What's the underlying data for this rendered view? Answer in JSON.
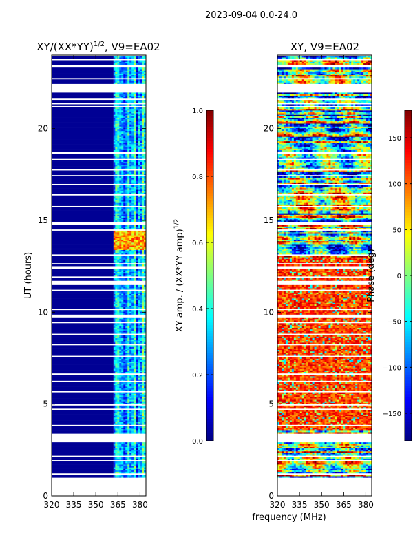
{
  "suptitle": "2023-09-04 0.0-24.0",
  "xlabel_shared": "frequency (MHz)",
  "colors": {
    "jet": [
      "#00007f",
      "#0000ff",
      "#007fff",
      "#00ffff",
      "#7fff7f",
      "#ffff00",
      "#ff7f00",
      "#ff0000",
      "#7f0000"
    ],
    "background": "#ffffff"
  },
  "chart_data": [
    {
      "type": "heatmap",
      "title_main": "XY/(XX*YY)",
      "title_sup": "1/2",
      "title_tail": ", V9=EA02",
      "xlabel": "",
      "ylabel": "UT (hours)",
      "xlim": [
        320,
        384
      ],
      "ylim": [
        0,
        24
      ],
      "xticks": [
        320,
        335,
        350,
        365,
        380
      ],
      "yticks": [
        0,
        5,
        10,
        15,
        20
      ],
      "colorbar": {
        "label_main": "XY amp. / (XX*YY amp)",
        "label_sup": "1/2",
        "range": [
          0.0,
          1.0
        ],
        "ticks": [
          "0.0",
          "0.2",
          "0.4",
          "0.6",
          "0.8",
          "1.0"
        ],
        "tick_values": [
          0.0,
          0.2,
          0.4,
          0.6,
          0.8,
          1.0
        ]
      },
      "data_extent_hours": [
        1.0,
        23.9
      ],
      "band_edge_mhz": 362,
      "low_band_value": 0.02,
      "high_band_typical": [
        0.1,
        0.55
      ],
      "bright_patch": {
        "hours": [
          13.4,
          14.4
        ],
        "value": 0.8
      }
    },
    {
      "type": "heatmap",
      "title": "XY, V9=EA02",
      "xlabel": "frequency (MHz)",
      "ylabel": "",
      "xlim": [
        320,
        384
      ],
      "ylim": [
        0,
        24
      ],
      "xticks": [
        320,
        335,
        350,
        365,
        380
      ],
      "yticks": [
        0,
        5,
        10,
        15,
        20
      ],
      "colorbar": {
        "label": "Phase (deg)",
        "range": [
          -180,
          180
        ],
        "ticks": [
          "−150",
          "−100",
          "−50",
          "0",
          "50",
          "100",
          "150"
        ],
        "tick_values": [
          -150,
          -100,
          -50,
          0,
          50,
          100,
          150
        ]
      },
      "data_extent_hours": [
        1.0,
        23.9
      ],
      "phase_regime_hours": {
        "stable_red": [
          3.5,
          13.0
        ],
        "noisy": [
          13.0,
          23.9
        ]
      }
    }
  ]
}
